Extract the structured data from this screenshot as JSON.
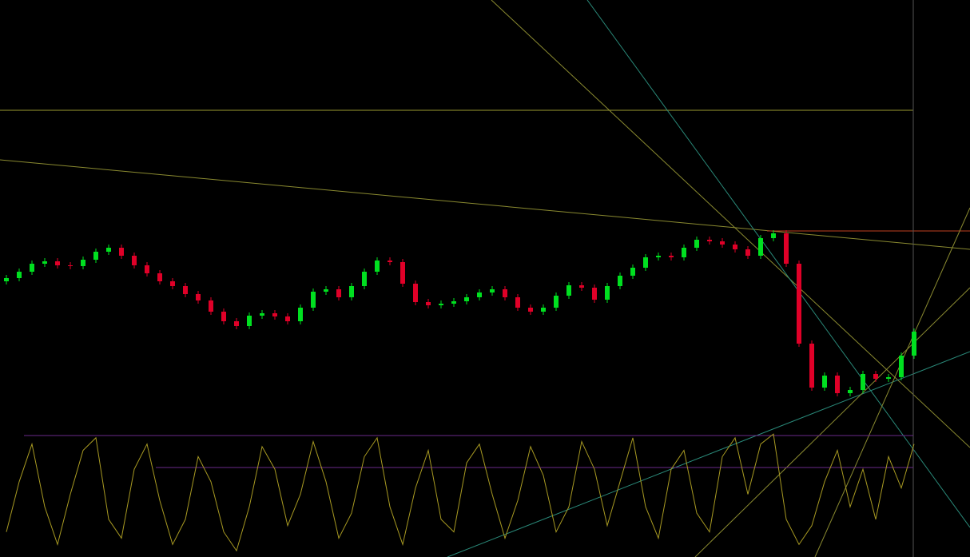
{
  "chart_data": [
    {
      "type": "candlestick",
      "up_color": "#00e020",
      "down_color": "#e00028",
      "ylim": [
        0,
        697
      ],
      "open": [
        345,
        349,
        357,
        367,
        370,
        365,
        364,
        372,
        382,
        387,
        377,
        365,
        355,
        345,
        339,
        329,
        321,
        307,
        295,
        289,
        302,
        305,
        301,
        295,
        312,
        332,
        335,
        325,
        339,
        357,
        371,
        369,
        342,
        319,
        315,
        317,
        320,
        325,
        331,
        335,
        325,
        312,
        307,
        312,
        327,
        340,
        337,
        322,
        339,
        352,
        362,
        375,
        377,
        375,
        387,
        397,
        395,
        391,
        385,
        377,
        399,
        405,
        367,
        267,
        212,
        227,
        205,
        209,
        229,
        223,
        225,
        252
      ],
      "high": [
        353,
        361,
        371,
        374,
        374,
        369,
        376,
        386,
        391,
        391,
        381,
        369,
        359,
        349,
        343,
        333,
        325,
        311,
        299,
        306,
        309,
        309,
        305,
        316,
        336,
        339,
        339,
        343,
        361,
        375,
        375,
        373,
        346,
        323,
        321,
        324,
        329,
        335,
        339,
        339,
        329,
        316,
        316,
        331,
        344,
        344,
        341,
        343,
        356,
        366,
        379,
        381,
        381,
        391,
        401,
        401,
        399,
        395,
        389,
        403,
        409,
        409,
        371,
        271,
        231,
        231,
        213,
        233,
        233,
        229,
        256,
        286
      ],
      "low": [
        341,
        345,
        353,
        363,
        361,
        360,
        360,
        368,
        378,
        373,
        361,
        351,
        341,
        335,
        325,
        317,
        303,
        291,
        285,
        285,
        298,
        297,
        291,
        291,
        308,
        328,
        321,
        321,
        335,
        353,
        365,
        338,
        315,
        311,
        311,
        313,
        316,
        321,
        327,
        321,
        308,
        303,
        303,
        308,
        323,
        333,
        318,
        318,
        335,
        348,
        358,
        371,
        371,
        371,
        383,
        391,
        387,
        381,
        373,
        373,
        395,
        363,
        263,
        208,
        208,
        201,
        201,
        205,
        219,
        219,
        221,
        248
      ],
      "close": [
        349,
        357,
        367,
        370,
        365,
        364,
        372,
        382,
        387,
        377,
        365,
        355,
        345,
        339,
        329,
        321,
        307,
        295,
        289,
        302,
        305,
        301,
        295,
        312,
        332,
        335,
        325,
        339,
        357,
        371,
        369,
        342,
        319,
        315,
        317,
        320,
        325,
        331,
        335,
        325,
        312,
        307,
        312,
        327,
        340,
        337,
        322,
        339,
        352,
        362,
        375,
        377,
        375,
        387,
        397,
        395,
        391,
        385,
        377,
        399,
        405,
        367,
        267,
        212,
        227,
        205,
        209,
        229,
        223,
        225,
        252,
        282
      ]
    },
    {
      "type": "line",
      "color": "#a89a22",
      "ylim": [
        0,
        100
      ],
      "values": [
        20,
        60,
        90,
        40,
        10,
        50,
        85,
        95,
        30,
        15,
        70,
        90,
        45,
        10,
        30,
        80,
        60,
        20,
        5,
        40,
        88,
        70,
        25,
        50,
        92,
        60,
        15,
        35,
        80,
        95,
        40,
        10,
        55,
        85,
        30,
        20,
        75,
        90,
        50,
        15,
        45,
        88,
        65,
        20,
        40,
        92,
        70,
        25,
        60,
        95,
        40,
        15,
        70,
        85,
        35,
        20,
        80,
        95,
        50,
        90,
        98,
        30,
        10,
        25,
        60,
        85,
        40,
        70,
        30,
        80,
        55,
        90
      ]
    }
  ]
}
